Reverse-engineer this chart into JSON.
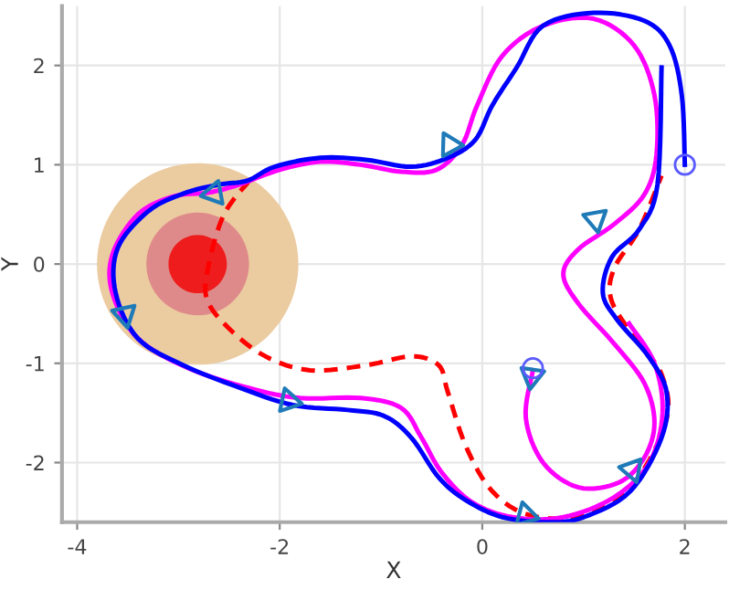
{
  "chart_data": {
    "type": "line",
    "xlabel": "X",
    "ylabel": "Y",
    "xlim": [
      -4.15,
      2.4
    ],
    "ylim": [
      -2.6,
      2.6
    ],
    "xticks": [
      {
        "value": -4,
        "label": "-4"
      },
      {
        "value": -2,
        "label": "-2"
      },
      0,
      2
    ],
    "yticks": [
      {
        "value": -2,
        "label": "-2"
      },
      {
        "value": -1,
        "label": "-1"
      },
      0,
      1,
      2
    ],
    "grid": true,
    "series": [
      {
        "type": "bubble",
        "color": "#ebcba0",
        "x": [
          -2.81
        ],
        "values": [
          0
        ],
        "sizes": [
          1
        ]
      },
      {
        "type": "bubble",
        "color": "#df8a8a",
        "x": [
          -2.81
        ],
        "values": [
          0
        ],
        "sizes": [
          0.26
        ]
      },
      {
        "type": "bubble",
        "color": "#ee1c1c",
        "x": [
          -2.81
        ],
        "values": [
          0
        ],
        "sizes": [
          0.084
        ]
      },
      {
        "color": "#ff0000",
        "line_style": "dashed",
        "marker": "none",
        "x": [
          -2.3,
          -2.55,
          -2.7,
          -2.72,
          -2.5,
          -2.14,
          -1.7,
          -1.15,
          -0.7,
          -0.43,
          -0.34,
          -0.16,
          0.1,
          0.47,
          1.0,
          1.5,
          1.82,
          1.77,
          1.55,
          1.28,
          1.3,
          1.55,
          1.77
        ],
        "values": [
          0.84,
          0.5,
          0.0,
          -0.35,
          -0.65,
          -0.93,
          -1.07,
          -1.02,
          -0.93,
          -1.02,
          -1.29,
          -1.84,
          -2.29,
          -2.53,
          -2.53,
          -2.2,
          -1.56,
          -1.11,
          -0.8,
          -0.38,
          -0.05,
          0.35,
          0.89
        ]
      },
      {
        "color": "#ff00ff",
        "line_style": "solid",
        "marker": "none",
        "x": [
          0.5,
          0.43,
          0.6,
          0.95,
          1.35,
          1.6,
          1.7,
          1.6,
          1.3,
          0.95,
          0.8,
          0.95,
          1.3,
          1.6,
          1.72,
          1.7,
          1.5,
          1.1,
          0.6,
          0.2,
          -0.05,
          -0.2,
          -0.45,
          -0.8,
          -1.2,
          -1.6,
          -2.0,
          -2.4,
          -2.7,
          -3.05,
          -3.4,
          -3.65,
          -3.65,
          -3.4,
          -2.9,
          -2.3,
          -1.8,
          -1.2,
          -0.8,
          -0.6,
          -0.4,
          -0.1,
          0.3,
          0.8,
          1.3,
          1.65,
          1.78,
          1.7,
          1.45
        ],
        "values": [
          -1.07,
          -1.55,
          -2.0,
          -2.25,
          -2.2,
          -1.95,
          -1.6,
          -1.2,
          -0.8,
          -0.4,
          -0.1,
          0.15,
          0.4,
          0.7,
          1.1,
          1.7,
          2.2,
          2.47,
          2.4,
          2.1,
          1.6,
          1.2,
          0.95,
          0.93,
          1.0,
          1.03,
          0.95,
          0.8,
          0.72,
          0.68,
          0.5,
          0.1,
          -0.3,
          -0.75,
          -1.05,
          -1.25,
          -1.35,
          -1.35,
          -1.45,
          -1.75,
          -2.1,
          -2.4,
          -2.55,
          -2.55,
          -2.35,
          -2.0,
          -1.5,
          -1.0,
          -0.6
        ]
      },
      {
        "color": "#0000ff",
        "line_style": "solid",
        "marker": "none",
        "x": [
          2.0,
          1.97,
          1.85,
          1.6,
          1.1,
          0.6,
          0.34,
          0.1,
          -0.07,
          -0.34,
          -0.7,
          -1.15,
          -1.6,
          -2.05,
          -2.32,
          -2.6,
          -2.95,
          -3.3,
          -3.6,
          -3.62,
          -3.4,
          -2.95,
          -2.41,
          -1.87,
          -1.33,
          -0.97,
          -0.7,
          -0.43,
          -0.16,
          0.2,
          0.65,
          1.0,
          1.46,
          1.77,
          1.82,
          1.64,
          1.33,
          1.19,
          1.28,
          1.55,
          1.73,
          1.77
        ],
        "values": [
          1.0,
          1.7,
          2.2,
          2.45,
          2.53,
          2.4,
          1.98,
          1.6,
          1.25,
          1.07,
          0.98,
          1.05,
          1.07,
          0.98,
          0.84,
          0.8,
          0.71,
          0.53,
          0.16,
          -0.29,
          -0.75,
          -1.02,
          -1.24,
          -1.42,
          -1.47,
          -1.53,
          -1.75,
          -2.15,
          -2.38,
          -2.55,
          -2.6,
          -2.55,
          -2.29,
          -1.75,
          -1.29,
          -0.93,
          -0.56,
          -0.29,
          0.07,
          0.35,
          0.8,
          1.98
        ]
      },
      {
        "type": "scatter",
        "color": "#1f7ab8",
        "marker": "triangle",
        "x": [
          -2.65,
          -0.32,
          1.12,
          -3.53,
          -1.91,
          0.49,
          1.48,
          0.43
        ],
        "values": [
          0.71,
          1.2,
          0.45,
          -0.51,
          -1.38,
          -1.13,
          -2.07,
          -2.53
        ]
      },
      {
        "type": "scatter",
        "color": "#5a5aff",
        "marker": "circle",
        "x": [
          2.0,
          0.5
        ],
        "values": [
          1.0,
          -1.05
        ]
      }
    ]
  }
}
